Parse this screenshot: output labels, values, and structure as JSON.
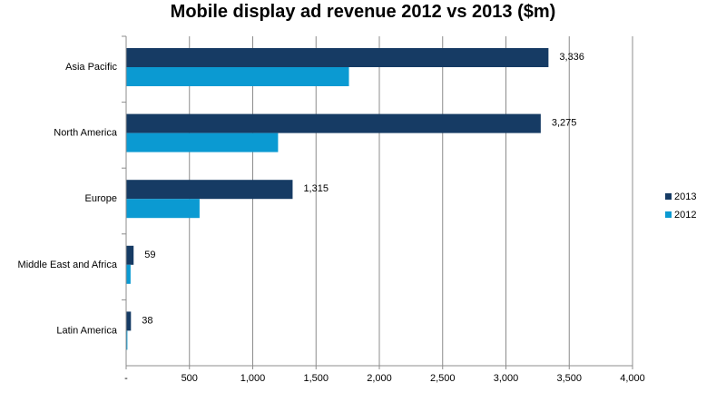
{
  "chart_data": {
    "type": "bar",
    "orientation": "horizontal",
    "title": "Mobile display ad revenue 2012 vs 2013 ($m)",
    "categories": [
      "Asia Pacific",
      "North America",
      "Europe",
      "Middle East and Africa",
      "Latin America"
    ],
    "series": [
      {
        "name": "2013",
        "color": "#163b64",
        "values": [
          3336,
          3275,
          1315,
          59,
          38
        ],
        "labels": [
          "3,336",
          "3,275",
          "1,315",
          "59",
          "38"
        ]
      },
      {
        "name": "2012",
        "color": "#0b9ad2",
        "values": [
          1760,
          1200,
          580,
          35,
          10
        ]
      }
    ],
    "xlim": [
      0,
      4000
    ],
    "x_ticks": [
      0,
      500,
      1000,
      1500,
      2000,
      2500,
      3000,
      3500,
      4000
    ],
    "x_tick_labels": [
      "-",
      "500",
      "1,000",
      "1,500",
      "2,000",
      "2,500",
      "3,000",
      "3,500",
      "4,000"
    ],
    "grid": true,
    "legend_position": "right"
  }
}
